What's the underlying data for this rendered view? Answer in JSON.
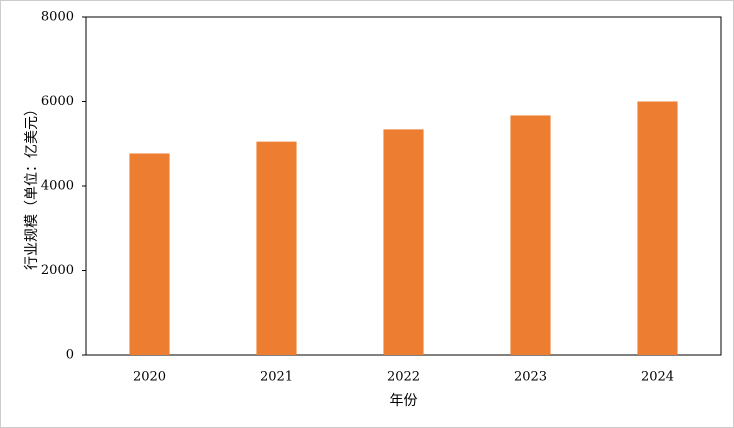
{
  "chart_data": {
    "type": "bar",
    "x_label": "年份",
    "y_label": "行业规模（单位：亿美元）",
    "categories": [
      "2020",
      "2021",
      "2022",
      "2023",
      "2024"
    ],
    "values": [
      4770,
      5050,
      5340,
      5670,
      6000
    ],
    "color": "#ed7d31",
    "ylim": [
      0,
      8000
    ],
    "yticks": [
      0,
      2000,
      4000,
      6000,
      8000
    ],
    "grid": false
  }
}
